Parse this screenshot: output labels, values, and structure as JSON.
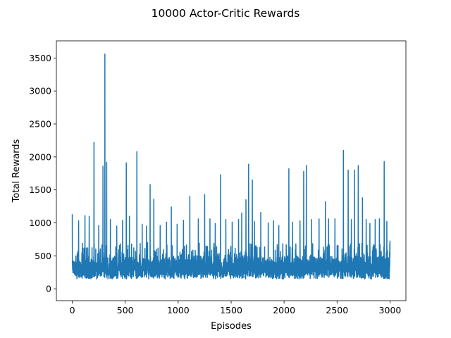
{
  "chart_data": {
    "type": "line",
    "title": "10000 Actor-Critic Rewards",
    "xlabel": "Episodes",
    "ylabel": "Total Rewards",
    "xlim": [
      -150,
      3150
    ],
    "ylim": [
      -180,
      3760
    ],
    "xticks": [
      0,
      500,
      1000,
      1500,
      2000,
      2500,
      3000
    ],
    "yticks": [
      0,
      500,
      1000,
      1500,
      2000,
      2500,
      3000,
      3500
    ],
    "xtick_labels": [
      "0",
      "500",
      "1000",
      "1500",
      "2000",
      "2500",
      "3000"
    ],
    "ytick_labels": [
      "0",
      "500",
      "1000",
      "1500",
      "2000",
      "2500",
      "3000",
      "3500"
    ],
    "grid": false,
    "legend": "none",
    "series": [
      {
        "color": "#1f77b4",
        "episodes": 3000,
        "typical_range": [
          90,
          700
        ],
        "baseline": 330,
        "spikes": [
          {
            "x": 0,
            "y": 1130
          },
          {
            "x": 60,
            "y": 1030
          },
          {
            "x": 120,
            "y": 1110
          },
          {
            "x": 160,
            "y": 1100
          },
          {
            "x": 205,
            "y": 2220
          },
          {
            "x": 250,
            "y": 960
          },
          {
            "x": 290,
            "y": 1860
          },
          {
            "x": 308,
            "y": 3560
          },
          {
            "x": 325,
            "y": 1920
          },
          {
            "x": 360,
            "y": 1050
          },
          {
            "x": 420,
            "y": 950
          },
          {
            "x": 475,
            "y": 1040
          },
          {
            "x": 510,
            "y": 1910
          },
          {
            "x": 540,
            "y": 1100
          },
          {
            "x": 610,
            "y": 2080
          },
          {
            "x": 660,
            "y": 980
          },
          {
            "x": 700,
            "y": 950
          },
          {
            "x": 735,
            "y": 1580
          },
          {
            "x": 770,
            "y": 1360
          },
          {
            "x": 830,
            "y": 960
          },
          {
            "x": 890,
            "y": 1010
          },
          {
            "x": 935,
            "y": 1240
          },
          {
            "x": 990,
            "y": 980
          },
          {
            "x": 1050,
            "y": 1040
          },
          {
            "x": 1110,
            "y": 1400
          },
          {
            "x": 1190,
            "y": 1060
          },
          {
            "x": 1250,
            "y": 1430
          },
          {
            "x": 1300,
            "y": 1060
          },
          {
            "x": 1350,
            "y": 990
          },
          {
            "x": 1400,
            "y": 1730
          },
          {
            "x": 1450,
            "y": 1050
          },
          {
            "x": 1510,
            "y": 1010
          },
          {
            "x": 1570,
            "y": 1050
          },
          {
            "x": 1600,
            "y": 1150
          },
          {
            "x": 1640,
            "y": 1350
          },
          {
            "x": 1665,
            "y": 1890
          },
          {
            "x": 1700,
            "y": 1650
          },
          {
            "x": 1720,
            "y": 1020
          },
          {
            "x": 1780,
            "y": 1160
          },
          {
            "x": 1850,
            "y": 1000
          },
          {
            "x": 1900,
            "y": 1030
          },
          {
            "x": 1950,
            "y": 960
          },
          {
            "x": 2045,
            "y": 1820
          },
          {
            "x": 2080,
            "y": 1010
          },
          {
            "x": 2150,
            "y": 1030
          },
          {
            "x": 2185,
            "y": 1780
          },
          {
            "x": 2210,
            "y": 1870
          },
          {
            "x": 2260,
            "y": 1050
          },
          {
            "x": 2330,
            "y": 1060
          },
          {
            "x": 2390,
            "y": 1320
          },
          {
            "x": 2420,
            "y": 1060
          },
          {
            "x": 2480,
            "y": 1060
          },
          {
            "x": 2560,
            "y": 2100
          },
          {
            "x": 2605,
            "y": 1800
          },
          {
            "x": 2635,
            "y": 1050
          },
          {
            "x": 2665,
            "y": 1800
          },
          {
            "x": 2700,
            "y": 1870
          },
          {
            "x": 2740,
            "y": 1380
          },
          {
            "x": 2775,
            "y": 1050
          },
          {
            "x": 2810,
            "y": 990
          },
          {
            "x": 2860,
            "y": 1050
          },
          {
            "x": 2900,
            "y": 1060
          },
          {
            "x": 2945,
            "y": 1930
          },
          {
            "x": 2970,
            "y": 1020
          },
          {
            "x": 3000,
            "y": 730
          }
        ]
      }
    ]
  }
}
